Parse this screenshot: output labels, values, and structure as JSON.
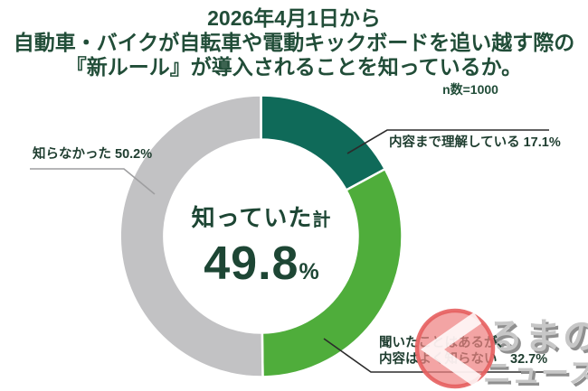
{
  "title": {
    "line1": "2026年4月1日から",
    "line2": "自動車・バイクが自転車や電動キックボードを追い越す際の",
    "line3": "『新ルール』が導入されることを知っているか。"
  },
  "sample_size": "n数=1000",
  "donut_center": {
    "label": "知っていた",
    "label_suffix": "計",
    "value": "49.8",
    "unit": "%"
  },
  "callouts": {
    "understood": "内容まで理解している 17.1%",
    "did_not_know": "知らなかった 50.2%",
    "heard_line1": "聞いたことはあるが、",
    "heard_line2": "内容はよく知らない　32.7%"
  },
  "logo": {
    "name": "くるまのニュース",
    "icon": "kuruma-no-news-logo-icon",
    "text_line1": "るまの",
    "text_line2": "ニュース"
  },
  "colors": {
    "teal": "#0F6A59",
    "green": "#4FAD3B",
    "gray": "#C2C2C4",
    "dark_text": "#214D38",
    "leader_dark": "#2B2B2B",
    "leader_gray": "#9E9EA0",
    "logo_red": "#EF8181",
    "logo_red_edge": "#E55F5F",
    "logo_gray": "#C7C7C7"
  },
  "chart_data": {
    "type": "pie",
    "donut": true,
    "title": "2026年4月1日から自動車・バイクが自転車や電動キックボードを追い越す際の『新ルール』が導入されることを知っているか。",
    "n_label": "n数=1000",
    "categories": [
      "内容まで理解している",
      "聞いたことはあるが、内容はよく知らない",
      "知らなかった"
    ],
    "values": [
      17.1,
      32.7,
      50.2
    ],
    "colors": [
      "#0F6A59",
      "#4FAD3B",
      "#C2C2C4"
    ],
    "start_angle_deg": 0,
    "direction": "clockwise",
    "center_total_label": "知っていた計 49.8%",
    "legend_position": "callout-labels"
  }
}
